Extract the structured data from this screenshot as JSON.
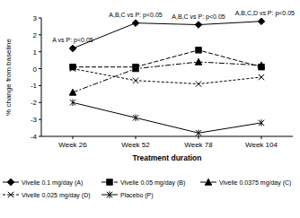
{
  "chart_data": {
    "type": "line",
    "x_label": "Treatment duration",
    "y_label": "% change from baseline",
    "categories": [
      "Week 26",
      "Week 52",
      "Week 78",
      "Week 104"
    ],
    "series": [
      {
        "name": "Vivelle 0.1 mg/day (A)",
        "color": "#000000",
        "marker": "diamond",
        "line_style": "solid",
        "values": [
          1.2,
          2.7,
          2.6,
          2.8
        ]
      },
      {
        "name": "Vivelle 0.05 mg/day (B)",
        "color": "#000000",
        "marker": "square",
        "line_style": "dashed",
        "values": [
          0.1,
          0.1,
          1.1,
          0.1
        ]
      },
      {
        "name": "Vivelle 0.0375 mg/day (C)",
        "color": "#000000",
        "marker": "triangle",
        "line_style": "dashdot",
        "values": [
          -1.4,
          0.0,
          0.4,
          0.2
        ]
      },
      {
        "name": "Vivelle 0.025 mg/day (D)",
        "color": "#000000",
        "marker": "x",
        "line_style": "dotted",
        "values": [
          0.0,
          -0.7,
          -0.9,
          -0.5
        ]
      },
      {
        "name": "Placebo (P)",
        "color": "#000000",
        "marker": "asterisk",
        "line_style": "solid",
        "values": [
          -2.0,
          -2.9,
          -3.8,
          -3.2
        ]
      }
    ],
    "annotations": [
      {
        "category": "Week 26",
        "text": "A vs P: p<0.05"
      },
      {
        "category": "Week 52",
        "text": "A,B,C vs P: p<0.05"
      },
      {
        "category": "Week 78",
        "text": "A,B,C vs P: p<0.05"
      },
      {
        "category": "Week 104",
        "text": "A,B,C,D vs P: p<0.05"
      }
    ],
    "ylim": [
      -4,
      3
    ],
    "yticks": [
      -4,
      -3,
      -2,
      -1,
      0,
      1,
      2,
      3
    ],
    "legend": "bottom",
    "grid": false
  }
}
